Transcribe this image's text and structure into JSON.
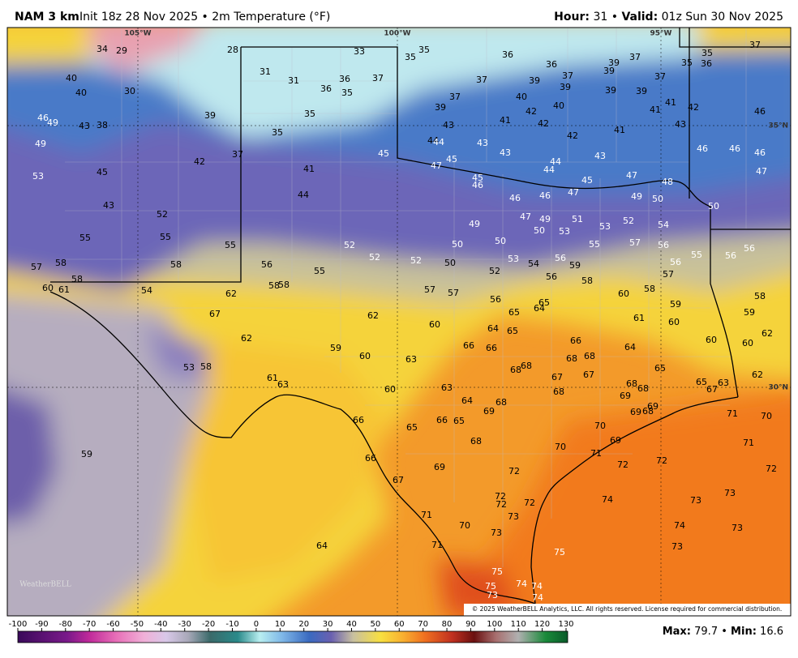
{
  "header": {
    "model": "NAM 3 km",
    "init": "Init 18z 28 Nov 2025 • 2m Temperature (°F)",
    "hour_label": "Hour:",
    "hour": 31,
    "separator": "•",
    "valid_label": "Valid:",
    "valid": "01z Sun 30 Nov 2025"
  },
  "map": {
    "lon_labels": [
      "105°W",
      "100°W",
      "95°W"
    ],
    "lat_labels": [
      "35°N",
      "30°N"
    ],
    "temperatures": [
      34,
      29,
      28,
      33,
      35,
      35,
      36,
      36,
      37,
      39,
      35,
      35,
      36,
      37,
      40,
      40,
      30,
      31,
      31,
      36,
      36,
      35,
      37,
      37,
      39,
      37,
      39,
      39,
      37,
      39,
      39,
      39,
      35,
      39,
      37,
      40,
      42,
      40,
      41,
      41,
      42,
      46,
      46,
      49,
      43,
      38,
      35,
      43,
      41,
      42,
      42,
      41,
      43,
      49,
      44,
      44,
      43,
      43,
      45,
      45,
      47,
      37,
      42,
      41,
      44,
      43,
      46,
      46,
      46,
      47,
      53,
      45,
      44,
      45,
      46,
      45,
      47,
      48,
      44,
      47,
      46,
      46,
      49,
      50,
      50,
      43,
      52,
      47,
      49,
      51,
      53,
      52,
      54,
      49,
      55,
      55,
      55,
      52,
      50,
      50,
      50,
      53,
      55,
      57,
      56,
      56,
      55,
      56,
      57,
      58,
      58,
      56,
      52,
      52,
      50,
      52,
      53,
      54,
      56,
      59,
      56,
      57,
      58,
      60,
      61,
      54,
      55,
      58,
      58,
      57,
      57,
      56,
      58,
      60,
      58,
      58,
      62,
      56,
      65,
      64,
      65,
      59,
      59,
      67,
      62,
      60,
      61,
      60,
      62,
      62,
      64,
      65,
      66,
      60,
      60,
      59,
      60,
      63,
      66,
      66,
      64,
      68,
      68,
      53,
      58,
      68,
      68,
      65,
      67,
      67,
      62,
      61,
      63,
      60,
      63,
      68,
      68,
      65,
      63,
      67,
      68,
      69,
      64,
      68,
      69,
      69,
      68,
      69,
      71,
      70,
      66,
      65,
      66,
      65,
      70,
      68,
      69,
      71,
      70,
      71,
      59,
      66,
      72,
      72,
      69,
      72,
      72,
      67,
      72,
      72,
      72,
      74,
      73,
      73,
      71,
      73,
      70,
      74,
      73,
      73,
      71,
      64,
      73,
      75,
      75,
      75,
      74,
      74,
      73,
      74
    ],
    "copyright": "© 2025 WeatherBELL Analytics, LLC. All rights reserved. License required for commercial distribution.",
    "logo": "WeatherBELL"
  },
  "colorbar": {
    "ticks": [
      -100,
      -90,
      -80,
      -70,
      -60,
      -50,
      -40,
      -30,
      -20,
      -10,
      0,
      10,
      20,
      30,
      40,
      50,
      60,
      70,
      80,
      90,
      100,
      110,
      120,
      130
    ]
  },
  "footer": {
    "max_label": "Max:",
    "max": 79.7,
    "separator": "•",
    "min_label": "Min:",
    "min": 16.6
  }
}
